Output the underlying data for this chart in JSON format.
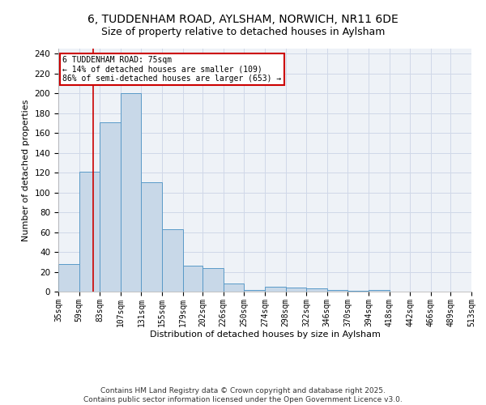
{
  "title1": "6, TUDDENHAM ROAD, AYLSHAM, NORWICH, NR11 6DE",
  "title2": "Size of property relative to detached houses in Aylsham",
  "xlabel": "Distribution of detached houses by size in Aylsham",
  "ylabel": "Number of detached properties",
  "bin_edges": [
    35,
    59,
    83,
    107,
    131,
    155,
    179,
    202,
    226,
    250,
    274,
    298,
    322,
    346,
    370,
    394,
    418,
    442,
    466,
    489,
    513
  ],
  "bar_heights": [
    28,
    121,
    171,
    200,
    110,
    63,
    26,
    24,
    8,
    2,
    5,
    4,
    3,
    2,
    1,
    2,
    0,
    0,
    0,
    0
  ],
  "bar_color": "#c8d8e8",
  "bar_edge_color": "#5a9ac8",
  "grid_color": "#d0d8e8",
  "bg_color": "#eef2f7",
  "property_line_x": 75,
  "property_line_color": "#cc0000",
  "annotation_text": "6 TUDDENHAM ROAD: 75sqm\n← 14% of detached houses are smaller (109)\n86% of semi-detached houses are larger (653) →",
  "annotation_box_color": "#cc0000",
  "ylim": [
    0,
    245
  ],
  "yticks": [
    0,
    20,
    40,
    60,
    80,
    100,
    120,
    140,
    160,
    180,
    200,
    220,
    240
  ],
  "footer_text": "Contains HM Land Registry data © Crown copyright and database right 2025.\nContains public sector information licensed under the Open Government Licence v3.0.",
  "title1_fontsize": 10,
  "title2_fontsize": 9,
  "tick_label_fontsize": 7,
  "ylabel_fontsize": 8,
  "xlabel_fontsize": 8,
  "footer_fontsize": 6.5
}
